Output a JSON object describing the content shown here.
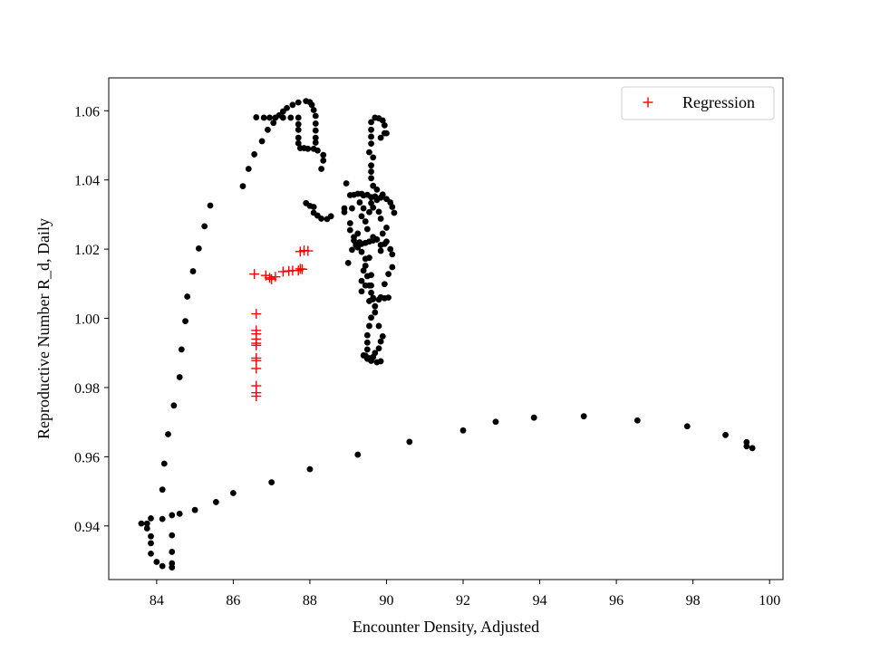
{
  "chart_data": {
    "type": "scatter",
    "xlabel": "Encounter Density, Adjusted",
    "ylabel": "Reproductive Number R_d, Daily",
    "xlim": [
      82.75,
      100.35
    ],
    "ylim": [
      0.9245,
      1.0695
    ],
    "xticks": [
      84,
      86,
      88,
      90,
      92,
      94,
      96,
      98,
      100
    ],
    "yticks": [
      0.94,
      0.96,
      0.98,
      1.0,
      1.02,
      1.04,
      1.06
    ],
    "ytick_labels": [
      "0.94",
      "0.96",
      "0.98",
      "1.00",
      "1.02",
      "1.04",
      "1.06"
    ],
    "grid": false,
    "legend": {
      "placement": "top-right",
      "entries": [
        "Regression"
      ]
    },
    "colors": {
      "observed": "#000000",
      "regression": "#ff0000"
    },
    "series": [
      {
        "marker": "dot",
        "color": "#000000",
        "points": [
          [
            99.55,
            0.9625
          ],
          [
            99.4,
            0.963
          ],
          [
            99.4,
            0.9642
          ],
          [
            98.85,
            0.9663
          ],
          [
            97.85,
            0.9688
          ],
          [
            96.55,
            0.9705
          ],
          [
            95.15,
            0.9717
          ],
          [
            93.85,
            0.9713
          ],
          [
            92.85,
            0.9701
          ],
          [
            92.0,
            0.9676
          ],
          [
            90.6,
            0.9643
          ],
          [
            89.25,
            0.9606
          ],
          [
            88.0,
            0.9564
          ],
          [
            87.0,
            0.9526
          ],
          [
            86.0,
            0.9495
          ],
          [
            85.55,
            0.9469
          ],
          [
            85.0,
            0.9446
          ],
          [
            84.6,
            0.9435
          ],
          [
            84.4,
            0.9431
          ],
          [
            84.15,
            0.942
          ],
          [
            83.85,
            0.9422
          ],
          [
            83.75,
            0.9407
          ],
          [
            83.6,
            0.9407
          ],
          [
            83.75,
            0.9393
          ],
          [
            83.85,
            0.937
          ],
          [
            83.85,
            0.935
          ],
          [
            83.85,
            0.932
          ],
          [
            84.0,
            0.9296
          ],
          [
            84.15,
            0.9284
          ],
          [
            84.4,
            0.928
          ],
          [
            84.4,
            0.9292
          ],
          [
            84.4,
            0.9325
          ],
          [
            84.4,
            0.9373
          ],
          [
            84.15,
            0.9505
          ],
          [
            84.2,
            0.958
          ],
          [
            84.3,
            0.9665
          ],
          [
            84.45,
            0.9748
          ],
          [
            84.6,
            0.983
          ],
          [
            84.65,
            0.991
          ],
          [
            84.75,
            0.9992
          ],
          [
            84.8,
            1.0063
          ],
          [
            84.95,
            1.0136
          ],
          [
            85.1,
            1.0202
          ],
          [
            85.25,
            1.0266
          ],
          [
            85.4,
            1.0326
          ],
          [
            86.25,
            1.0382
          ],
          [
            86.4,
            1.0432
          ],
          [
            86.55,
            1.0474
          ],
          [
            86.75,
            1.0512
          ],
          [
            86.9,
            1.0545
          ],
          [
            87.05,
            1.0565
          ],
          [
            87.2,
            1.0587
          ],
          [
            87.3,
            1.0598
          ],
          [
            87.4,
            1.0608
          ],
          [
            87.55,
            1.0617
          ],
          [
            87.7,
            1.0624
          ],
          [
            87.9,
            1.0628
          ],
          [
            88.0,
            1.0625
          ],
          [
            88.05,
            1.0617
          ],
          [
            88.1,
            1.0602
          ],
          [
            88.15,
            1.0585
          ],
          [
            88.15,
            1.0563
          ],
          [
            88.15,
            1.0543
          ],
          [
            88.15,
            1.0522
          ],
          [
            88.15,
            1.0508
          ],
          [
            88.1,
            1.049
          ],
          [
            87.95,
            1.049
          ],
          [
            87.85,
            1.0492
          ],
          [
            87.75,
            1.0492
          ],
          [
            87.7,
            1.0506
          ],
          [
            87.7,
            1.0522
          ],
          [
            87.7,
            1.0545
          ],
          [
            87.7,
            1.0561
          ],
          [
            87.7,
            1.058
          ],
          [
            87.5,
            1.058
          ],
          [
            87.3,
            1.058
          ],
          [
            87.1,
            1.058
          ],
          [
            86.95,
            1.058
          ],
          [
            86.8,
            1.058
          ],
          [
            86.6,
            1.0581
          ],
          [
            88.3,
            1.0432
          ],
          [
            88.35,
            1.0456
          ],
          [
            88.35,
            1.0472
          ],
          [
            88.2,
            1.0485
          ],
          [
            87.9,
            1.0333
          ],
          [
            88.0,
            1.0325
          ],
          [
            88.1,
            1.0322
          ],
          [
            88.1,
            1.0305
          ],
          [
            88.2,
            1.0297
          ],
          [
            88.3,
            1.0288
          ],
          [
            88.45,
            1.0287
          ],
          [
            88.55,
            1.0295
          ],
          [
            88.9,
            1.0318
          ],
          [
            88.9,
            1.0307
          ],
          [
            88.95,
            1.039
          ],
          [
            89.05,
            1.0356
          ],
          [
            89.15,
            1.0357
          ],
          [
            89.25,
            1.036
          ],
          [
            89.35,
            1.036
          ],
          [
            89.4,
            1.0355
          ],
          [
            89.5,
            1.0357
          ],
          [
            89.6,
            1.035
          ],
          [
            89.7,
            1.0352
          ],
          [
            89.75,
            1.0342
          ],
          [
            89.85,
            1.0349
          ],
          [
            89.9,
            1.0358
          ],
          [
            90.0,
            1.0345
          ],
          [
            90.1,
            1.0335
          ],
          [
            90.15,
            1.0322
          ],
          [
            90.2,
            1.0305
          ],
          [
            90.1,
            1.02
          ],
          [
            90.15,
            1.0185
          ],
          [
            90.15,
            1.0148
          ],
          [
            90.05,
            1.0128
          ],
          [
            89.95,
            1.0099
          ],
          [
            89.8,
            1.0054
          ],
          [
            89.85,
            1.0061
          ],
          [
            89.95,
            1.0058
          ],
          [
            90.05,
            1.006
          ],
          [
            89.6,
            1.0074
          ],
          [
            89.6,
            1.0095
          ],
          [
            89.65,
            1.0059
          ],
          [
            89.55,
            1.005
          ],
          [
            89.7,
            1.0035
          ],
          [
            89.6,
            1.0002
          ],
          [
            89.55,
            0.9978
          ],
          [
            89.5,
            0.9951
          ],
          [
            89.5,
            0.993
          ],
          [
            89.5,
            0.991
          ],
          [
            89.65,
            0.9888
          ],
          [
            89.55,
            0.9885
          ],
          [
            89.45,
            0.9892
          ],
          [
            89.4,
            0.9893
          ],
          [
            89.6,
            0.9877
          ],
          [
            89.75,
            0.9873
          ],
          [
            89.85,
            0.9876
          ],
          [
            89.5,
            0.9883
          ],
          [
            89.7,
            0.99
          ],
          [
            89.8,
            0.9913
          ],
          [
            89.85,
            0.9933
          ],
          [
            89.9,
            0.9948
          ],
          [
            89.8,
            0.9978
          ],
          [
            89.7,
            1.0017
          ],
          [
            89.65,
            1.0055
          ],
          [
            89.55,
            1.0095
          ],
          [
            89.5,
            1.0122
          ],
          [
            89.45,
            1.0152
          ],
          [
            89.45,
            1.0172
          ],
          [
            89.35,
            1.0192
          ],
          [
            89.3,
            1.022
          ],
          [
            89.25,
            1.0205
          ],
          [
            89.1,
            1.0198
          ],
          [
            89.2,
            1.0212
          ],
          [
            89.35,
            1.0215
          ],
          [
            89.45,
            1.0218
          ],
          [
            89.55,
            1.0222
          ],
          [
            89.65,
            1.0225
          ],
          [
            89.75,
            1.0228
          ],
          [
            89.85,
            1.0212
          ],
          [
            89.95,
            1.0215
          ],
          [
            90.0,
            1.0222
          ],
          [
            89.65,
            1.0235
          ],
          [
            89.5,
            1.0258
          ],
          [
            89.45,
            1.028
          ],
          [
            89.55,
            1.0307
          ],
          [
            89.6,
            1.0333
          ],
          [
            89.7,
            1.0352
          ],
          [
            89.75,
            1.0372
          ],
          [
            89.65,
            1.0383
          ],
          [
            89.6,
            1.0405
          ],
          [
            89.6,
            1.0424
          ],
          [
            89.6,
            1.0442
          ],
          [
            89.65,
            1.0465
          ],
          [
            89.55,
            1.048
          ],
          [
            89.6,
            1.0505
          ],
          [
            89.6,
            1.0525
          ],
          [
            89.6,
            1.0545
          ],
          [
            89.6,
            1.0567
          ],
          [
            89.7,
            1.058
          ],
          [
            89.8,
            1.0578
          ],
          [
            89.9,
            1.0572
          ],
          [
            89.95,
            1.0558
          ],
          [
            89.95,
            1.0535
          ],
          [
            89.85,
            1.0522
          ],
          [
            90.0,
            1.0535
          ],
          [
            89.35,
            1.0295
          ],
          [
            89.05,
            1.0275
          ],
          [
            89.05,
            1.0255
          ],
          [
            89.15,
            1.0235
          ],
          [
            89.25,
            1.0245
          ],
          [
            89.15,
            1.0225
          ],
          [
            89.0,
            1.016
          ],
          [
            89.1,
            1.0318
          ],
          [
            89.3,
            1.0335
          ],
          [
            89.4,
            1.0318
          ],
          [
            89.65,
            1.032
          ],
          [
            89.8,
            1.0308
          ],
          [
            89.85,
            1.0288
          ],
          [
            90.0,
            1.0262
          ],
          [
            89.9,
            1.0245
          ],
          [
            89.85,
            1.0195
          ],
          [
            89.4,
            1.0138
          ],
          [
            89.35,
            1.0108
          ],
          [
            89.6,
            1.0125
          ],
          [
            89.55,
            1.0175
          ],
          [
            89.45,
            1.0095
          ],
          [
            89.35,
            1.0078
          ]
        ]
      },
      {
        "name": "Regression",
        "marker": "plus",
        "color": "#ff0000",
        "points": [
          [
            86.55,
            1.0128
          ],
          [
            86.85,
            1.0124
          ],
          [
            86.95,
            1.0117
          ],
          [
            87.0,
            1.0113
          ],
          [
            87.1,
            1.012
          ],
          [
            87.3,
            1.0135
          ],
          [
            87.45,
            1.0137
          ],
          [
            87.55,
            1.0138
          ],
          [
            87.7,
            1.0138
          ],
          [
            87.75,
            1.0143
          ],
          [
            87.8,
            1.0142
          ],
          [
            87.75,
            1.0193
          ],
          [
            87.85,
            1.0196
          ],
          [
            87.95,
            1.0195
          ],
          [
            86.6,
            1.0013
          ],
          [
            86.6,
            0.9965
          ],
          [
            86.6,
            0.9955
          ],
          [
            86.6,
            0.994
          ],
          [
            86.6,
            0.9928
          ],
          [
            86.6,
            0.9922
          ],
          [
            86.6,
            0.9885
          ],
          [
            86.6,
            0.9878
          ],
          [
            86.6,
            0.9855
          ],
          [
            86.6,
            0.9805
          ],
          [
            86.6,
            0.9785
          ],
          [
            86.6,
            0.9775
          ]
        ]
      }
    ]
  }
}
